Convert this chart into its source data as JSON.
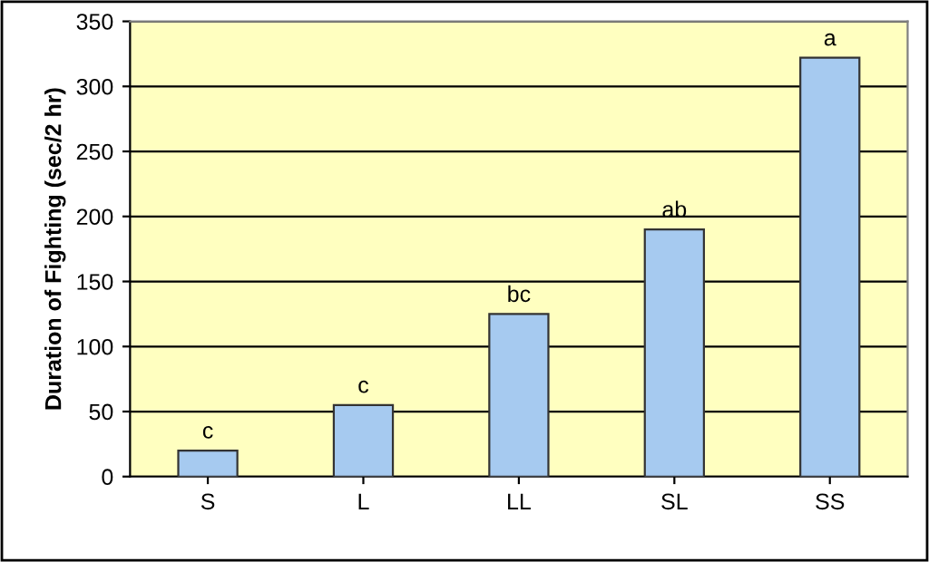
{
  "chart_data": {
    "type": "bar",
    "ylabel": "Duration of Fighting (sec/2 hr)",
    "categories": [
      "S",
      "L",
      "LL",
      "SL",
      "SS"
    ],
    "values": [
      20,
      55,
      125,
      190,
      322
    ],
    "color": "#a6caf0",
    "ylim": [
      0,
      350
    ],
    "yticks": [
      0,
      50,
      100,
      150,
      200,
      250,
      300,
      350
    ],
    "grid": "y",
    "annotations": [
      {
        "text": "c",
        "x": "S",
        "y": 20
      },
      {
        "text": "c",
        "x": "L",
        "y": 55
      },
      {
        "text": "bc",
        "x": "LL",
        "y": 125
      },
      {
        "text": "ab",
        "x": "SL",
        "y": 190
      },
      {
        "text": "a",
        "x": "SS",
        "y": 322
      }
    ]
  }
}
